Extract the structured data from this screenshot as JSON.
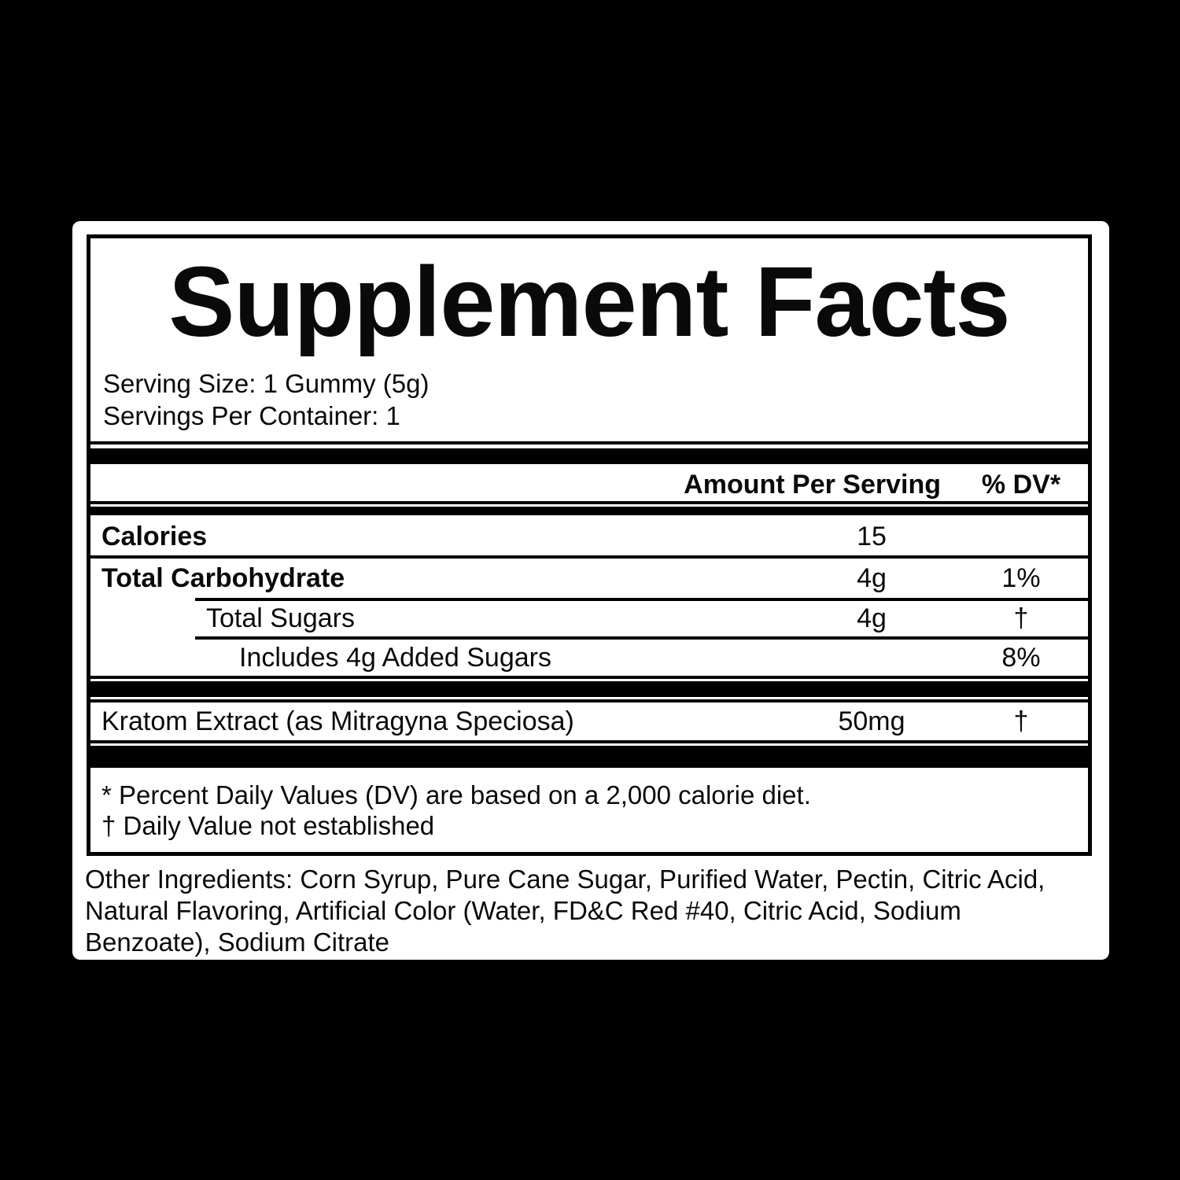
{
  "colors": {
    "background": "#000000",
    "panel": "#ffffff",
    "ink": "#000000"
  },
  "label": {
    "title": "Supplement Facts",
    "serving_size": "Serving Size: 1 Gummy (5g)",
    "servings_per_container": "Servings Per Container: 1",
    "columns": {
      "amount": "Amount Per Serving",
      "dv": "% DV*"
    },
    "rows": [
      {
        "name": "Calories",
        "amount": "15",
        "dv": ""
      },
      {
        "name": "Total Carbohydrate",
        "amount": "4g",
        "dv": "1%"
      },
      {
        "name": "Total Sugars",
        "amount": "4g",
        "dv": "†"
      },
      {
        "name": "Includes 4g Added Sugars",
        "amount": "",
        "dv": "8%"
      }
    ],
    "extract_row": {
      "name": "Kratom Extract (as Mitragyna Speciosa)",
      "amount": "50mg",
      "dv": "†"
    },
    "footnote_dv": "* Percent Daily Values (DV) are based on a 2,000 calorie diet.",
    "footnote_dagger": "† Daily Value not established",
    "other_ingredients": "Other Ingredients: Corn Syrup, Pure Cane Sugar, Purified Water, Pectin, Citric Acid, Natural Flavoring, Artificial Color (Water, FD&C Red #40, Citric Acid, Sodium Benzoate), Sodium Citrate"
  }
}
